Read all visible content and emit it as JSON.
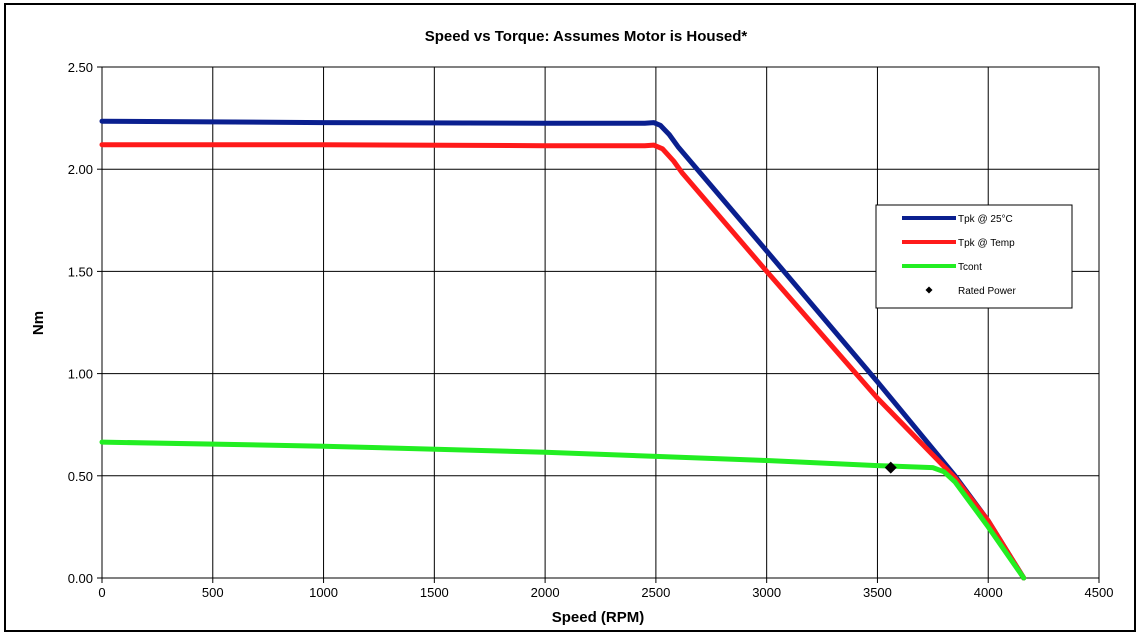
{
  "chart_data": {
    "type": "line",
    "title": "Speed vs Torque:  Assumes Motor is Housed*",
    "xlabel": "Speed (RPM)",
    "ylabel": "Nm",
    "xlim": [
      0,
      4500
    ],
    "ylim": [
      0,
      2.5
    ],
    "x_ticks": [
      0,
      500,
      1000,
      1500,
      2000,
      2500,
      3000,
      3500,
      4000,
      4500
    ],
    "y_ticks": [
      "0.00",
      "0.50",
      "1.00",
      "1.50",
      "2.00",
      "2.50"
    ],
    "grid": true,
    "legend_position": "right",
    "series": [
      {
        "name": "Tpk @ 25°C",
        "color": "#0a1f8f",
        "x": [
          0,
          1000,
          2000,
          2450,
          2490,
          2520,
          2560,
          2600,
          3000,
          3500,
          3850,
          4000,
          4160
        ],
        "y": [
          2.235,
          2.228,
          2.225,
          2.225,
          2.228,
          2.215,
          2.17,
          2.11,
          1.6,
          0.96,
          0.5,
          0.28,
          0.0
        ]
      },
      {
        "name": "Tpk @ Temp",
        "color": "#ff1a1a",
        "x": [
          0,
          1000,
          2000,
          2450,
          2490,
          2530,
          2580,
          2620,
          3000,
          3500,
          3850,
          4000,
          4160
        ],
        "y": [
          2.12,
          2.12,
          2.115,
          2.115,
          2.118,
          2.1,
          2.04,
          1.98,
          1.5,
          0.88,
          0.49,
          0.28,
          0.0
        ]
      },
      {
        "name": "Tcont",
        "color": "#22ee22",
        "x": [
          0,
          1000,
          2000,
          2500,
          3000,
          3500,
          3750,
          3800,
          3850,
          4000,
          4160
        ],
        "y": [
          0.665,
          0.645,
          0.615,
          0.595,
          0.575,
          0.55,
          0.54,
          0.52,
          0.47,
          0.25,
          0.0
        ]
      }
    ],
    "markers": [
      {
        "name": "Rated Power",
        "shape": "diamond",
        "color": "#000000",
        "x": 3560,
        "y": 0.54
      }
    ]
  }
}
